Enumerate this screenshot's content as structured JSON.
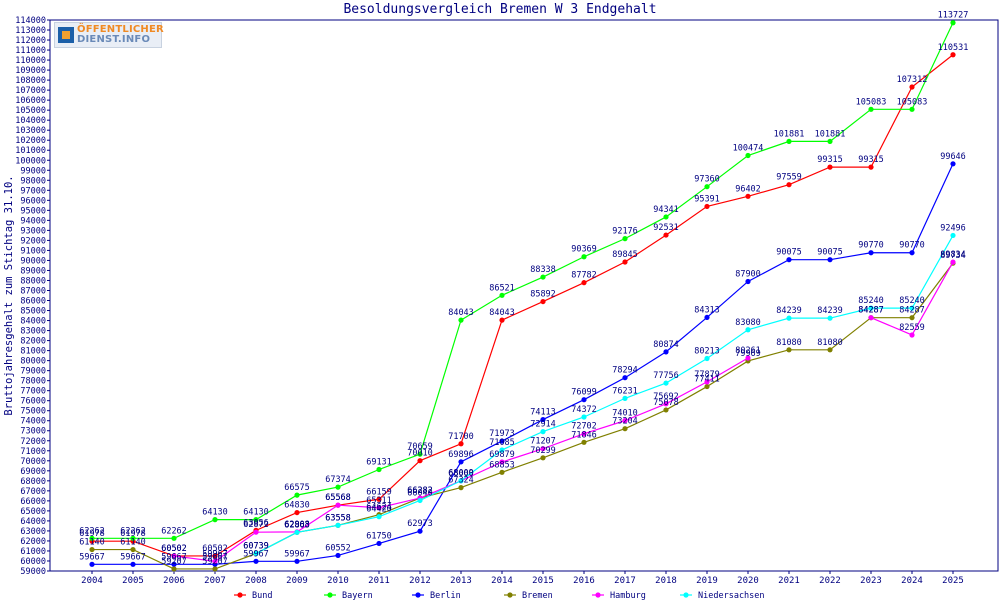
{
  "title": "Besoldungsvergleich Bremen W 3 Endgehalt",
  "logo": {
    "line1": "ÖFFENTLICHER",
    "line2": "DIENST.INFO"
  },
  "colors": {
    "axis": "#000080",
    "grid": "#000080",
    "text": "#000080"
  },
  "chart_data": {
    "type": "line",
    "title": "Besoldungsvergleich Bremen W 3 Endgehalt",
    "xlabel": "",
    "ylabel": "Bruttojahresgehalt zum Stichtag 31.10.",
    "ylim": [
      59000,
      114000
    ],
    "ytick_step": 1000,
    "grid": false,
    "legend_position": "bottom",
    "x": [
      "2004",
      "2005",
      "2006",
      "2007",
      "2008",
      "2009",
      "2010",
      "2011",
      "2012",
      "2013",
      "2014",
      "2015",
      "2016",
      "2017",
      "2018",
      "2019",
      "2020",
      "2021",
      "2022",
      "2023",
      "2024",
      "2025"
    ],
    "series": [
      {
        "name": "Bund",
        "color": "#ff0000",
        "values": [
          61978,
          61978,
          60502,
          60502,
          63056,
          64830,
          65568,
          66159,
          70010,
          71700,
          84043,
          85892,
          87782,
          89845,
          92531,
          95391,
          96402,
          97559,
          99315,
          99315,
          107312,
          110531
        ]
      },
      {
        "name": "Bayern",
        "color": "#00ff00",
        "values": [
          62262,
          62262,
          62262,
          64130,
          64130,
          66575,
          67374,
          69131,
          70659,
          84043,
          86521,
          88338,
          90369,
          92176,
          94341,
          97360,
          100474,
          101881,
          101881,
          105083,
          105083,
          113727
        ]
      },
      {
        "name": "Berlin",
        "color": "#0000ff",
        "values": [
          59667,
          59667,
          59667,
          59667,
          59967,
          59967,
          60552,
          61750,
          62973,
          69896,
          71973,
          74113,
          76099,
          78294,
          80874,
          84313,
          87900,
          90075,
          90075,
          90770,
          90770,
          99646
        ]
      },
      {
        "name": "Bremen",
        "color": "#808000",
        "values": [
          61140,
          61140,
          59207,
          59207,
          60739,
          62863,
          63558,
          64624,
          66282,
          67324,
          68853,
          70299,
          71846,
          73204,
          75078,
          77411,
          79969,
          81080,
          81080,
          84287,
          84287,
          89734
        ]
      },
      {
        "name": "Hamburg",
        "color": "#ff00ff",
        "values": [
          null,
          null,
          60502,
          59967,
          62872,
          62908,
          65568,
          65311,
          66282,
          68000,
          69879,
          71207,
          72702,
          74010,
          75692,
          77879,
          80261,
          null,
          null,
          84287,
          82559,
          89834
        ]
      },
      {
        "name": "Niedersachsen",
        "color": "#00ffff",
        "values": [
          null,
          null,
          null,
          null,
          60739,
          62863,
          63558,
          64420,
          66040,
          68009,
          71085,
          72914,
          74372,
          76231,
          77756,
          80213,
          83080,
          84239,
          84239,
          85240,
          85240,
          92496
        ]
      }
    ]
  }
}
